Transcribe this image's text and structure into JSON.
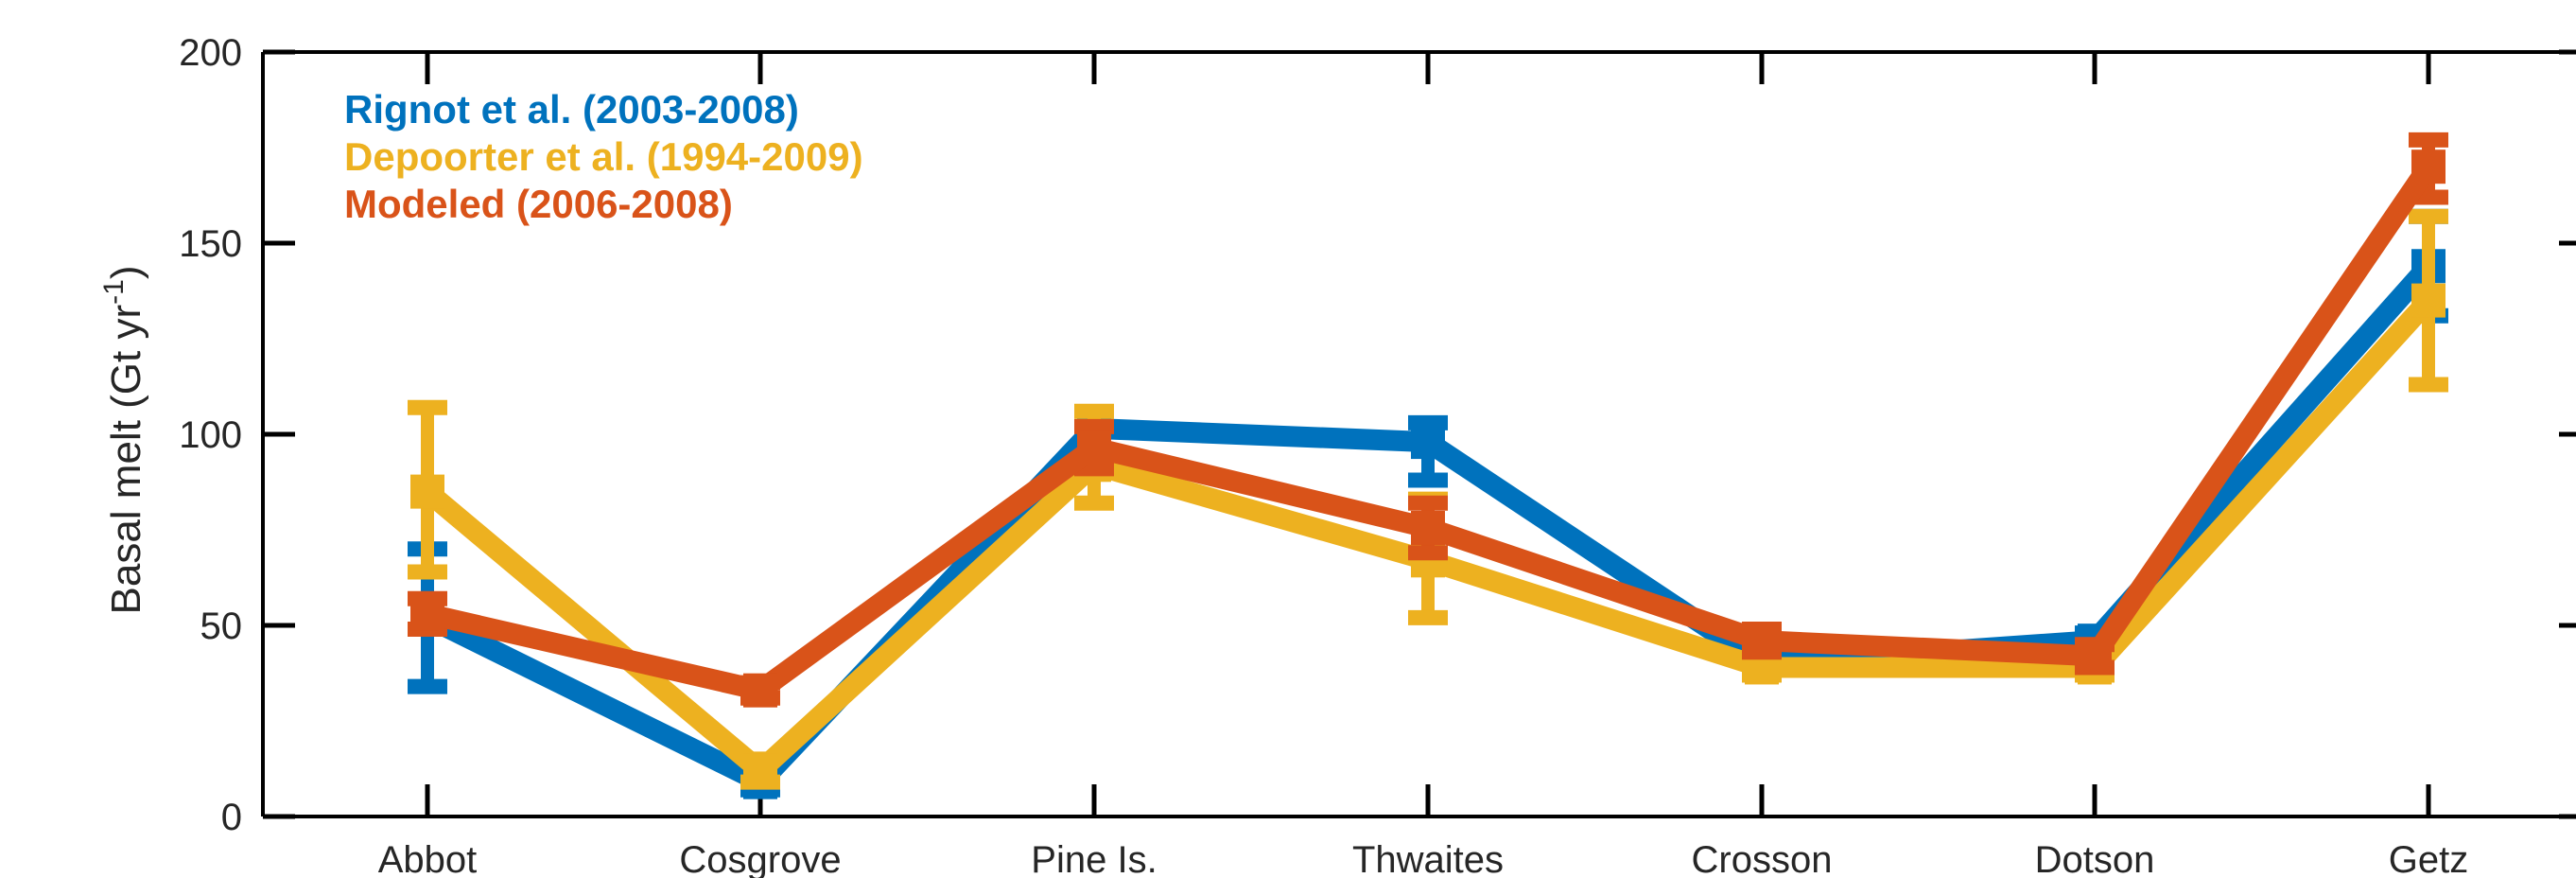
{
  "chart_data": {
    "type": "line",
    "categories": [
      "Abbot",
      "Cosgrove",
      "Pine Is.",
      "Thwaites",
      "Crosson",
      "Dotson",
      "Getz"
    ],
    "ylabel": "Basal melt (Gt yr",
    "ylabel_sup": "-1",
    "ylabel_close": ")",
    "ylim": [
      0,
      200
    ],
    "yticks": [
      0,
      50,
      100,
      150,
      200
    ],
    "grid": false,
    "legend_position": "top-left",
    "series": [
      {
        "name": "Rignot et al. (2003-2008)",
        "color": "#0072BD",
        "values": [
          52,
          9,
          101.5,
          98,
          40,
          46,
          144
        ],
        "err_low": [
          34,
          7,
          101.5,
          88,
          38,
          44,
          131
        ],
        "err_high": [
          70,
          11,
          101.5,
          103,
          42,
          48,
          157
        ]
      },
      {
        "name": "Depoorter et al. (1994-2009)",
        "color": "#EDB120",
        "values": [
          85,
          12,
          92,
          67,
          39,
          39,
          135
        ],
        "err_low": [
          64,
          9,
          82,
          52,
          37,
          37,
          113
        ],
        "err_high": [
          107,
          15,
          106,
          83,
          41,
          41,
          157
        ]
      },
      {
        "name": "Modeled (2006-2008)",
        "color": "#D95319",
        "values": [
          53,
          33,
          96.5,
          75.5,
          46,
          42,
          170
        ],
        "err_low": [
          49,
          31,
          91,
          69,
          43,
          39,
          162
        ],
        "err_high": [
          57,
          35,
          102,
          82,
          49,
          45,
          177
        ]
      }
    ]
  }
}
